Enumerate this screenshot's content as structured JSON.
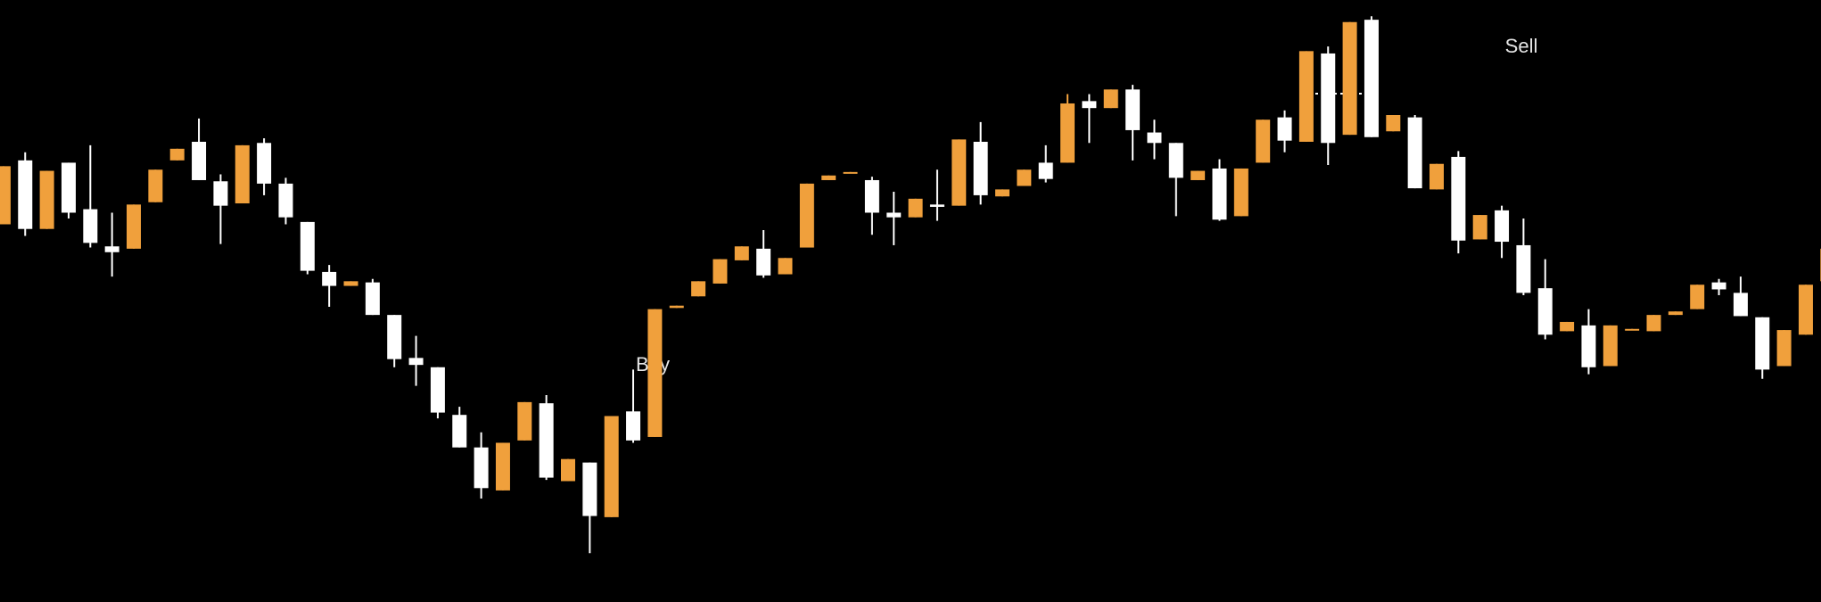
{
  "chart_data": {
    "type": "candlestick",
    "up_color": "#f0a03c",
    "down_color": "#ffffff",
    "ylim": [
      0,
      518
    ],
    "annotations": [
      "Buy",
      "Sell"
    ],
    "open": [
      325,
      380,
      321,
      378,
      338,
      306,
      304,
      344,
      380,
      396,
      362,
      343,
      395,
      360,
      327,
      284,
      272,
      275,
      247,
      210,
      202,
      161,
      133,
      96,
      139,
      171,
      104,
      120,
      73,
      164,
      142,
      253,
      263,
      274,
      294,
      304,
      282,
      305,
      363,
      369,
      363,
      335,
      331,
      342,
      341,
      396,
      349,
      358,
      378,
      378,
      431,
      425,
      441,
      404,
      395,
      363,
      373,
      332,
      378,
      417,
      396,
      472,
      402,
      501,
      405,
      417,
      355,
      383,
      312,
      337,
      307,
      270,
      233,
      238,
      203,
      234,
      233,
      247,
      252,
      275,
      266,
      245,
      203,
      230,
      276
    ],
    "high": [
      375,
      387,
      371,
      378,
      393,
      335,
      342,
      372,
      390,
      416,
      368,
      393,
      399,
      365,
      327,
      290,
      276,
      278,
      247,
      229,
      202,
      168,
      146,
      137,
      172,
      178,
      123,
      120,
      160,
      200,
      252,
      255,
      276,
      295,
      306,
      320,
      296,
      360,
      367,
      370,
      366,
      353,
      347,
      372,
      398,
      413,
      355,
      372,
      393,
      437,
      437,
      441,
      445,
      415,
      395,
      371,
      381,
      373,
      415,
      423,
      474,
      478,
      499,
      504,
      419,
      419,
      377,
      388,
      333,
      341,
      330,
      295,
      241,
      252,
      238,
      235,
      247,
      250,
      273,
      278,
      280,
      245,
      234,
      273,
      304
    ],
    "low": [
      325,
      315,
      321,
      330,
      305,
      280,
      304,
      344,
      380,
      363,
      308,
      343,
      350,
      325,
      282,
      254,
      272,
      247,
      202,
      186,
      158,
      133,
      89,
      96,
      139,
      105,
      104,
      42,
      73,
      137,
      142,
      253,
      263,
      274,
      294,
      279,
      282,
      305,
      363,
      369,
      316,
      307,
      331,
      328,
      341,
      342,
      349,
      358,
      361,
      378,
      395,
      425,
      380,
      381,
      332,
      363,
      328,
      332,
      378,
      387,
      396,
      376,
      402,
      400,
      405,
      356,
      355,
      300,
      312,
      296,
      264,
      226,
      233,
      196,
      203,
      234,
      233,
      247,
      252,
      264,
      246,
      192,
      203,
      230,
      276
    ],
    "close": [
      375,
      321,
      371,
      335,
      309,
      301,
      342,
      372,
      390,
      363,
      341,
      393,
      360,
      331,
      285,
      272,
      276,
      247,
      209,
      204,
      163,
      133,
      98,
      137,
      172,
      107,
      123,
      74,
      160,
      139,
      252,
      255,
      276,
      295,
      306,
      281,
      296,
      360,
      367,
      370,
      335,
      331,
      347,
      340,
      398,
      350,
      355,
      372,
      364,
      429,
      425,
      441,
      406,
      395,
      365,
      371,
      329,
      373,
      415,
      397,
      474,
      395,
      499,
      400,
      419,
      356,
      377,
      311,
      333,
      310,
      266,
      230,
      241,
      202,
      238,
      235,
      247,
      250,
      273,
      269,
      246,
      200,
      234,
      273,
      304
    ]
  }
}
